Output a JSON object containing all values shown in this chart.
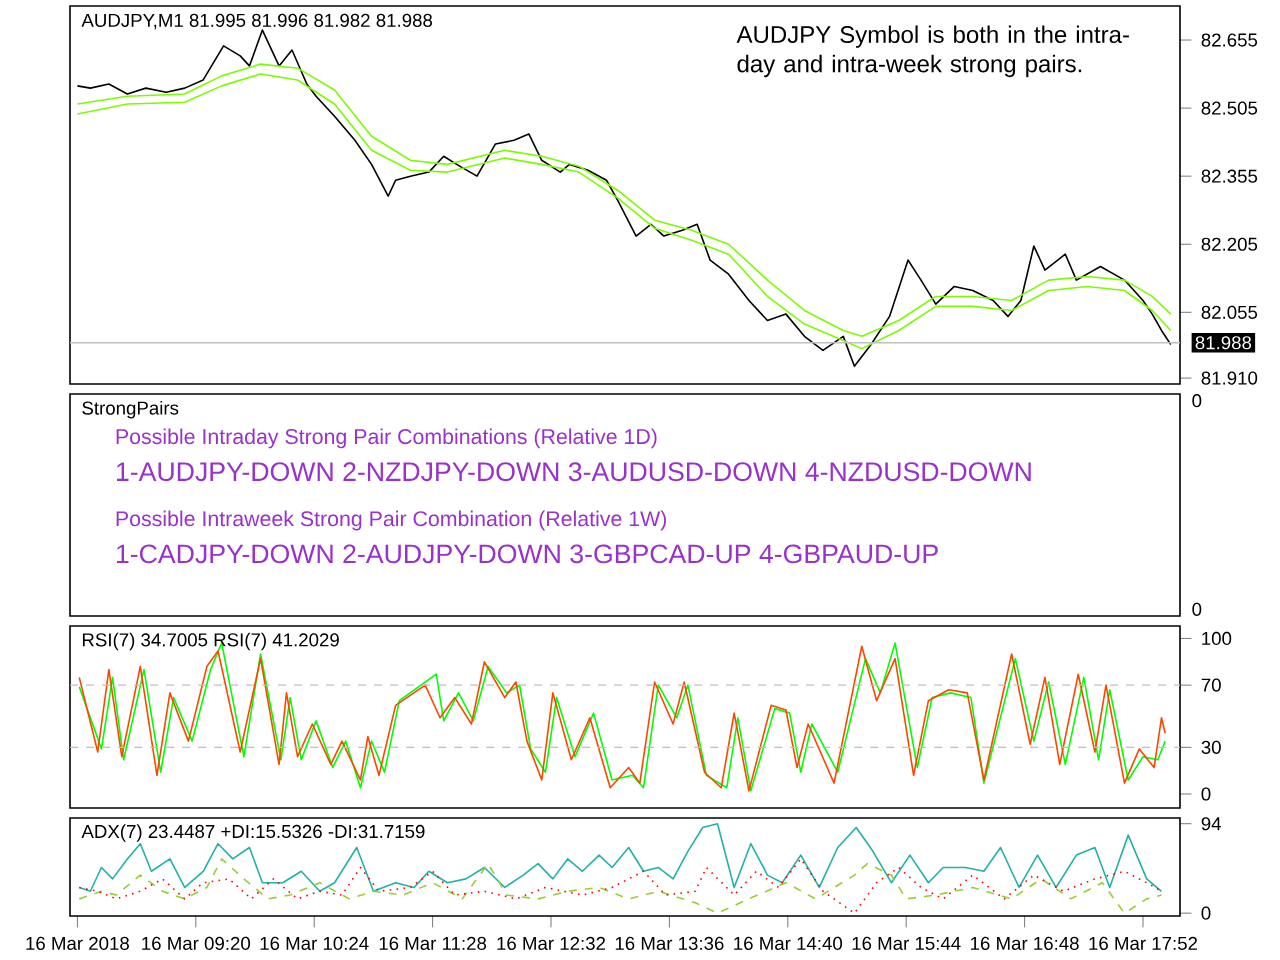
{
  "chart_data": [
    {
      "type": "line",
      "title": "AUDJPY,M1  81.995 81.996 81.982 81.988",
      "annotations": [
        "AUDJPY Symbol is both in the intra-day and intra-week strong pairs."
      ],
      "xlim": [
        "2018-03-16T08:12",
        "2018-03-16T18:12"
      ],
      "ylim": [
        81.897,
        82.73
      ],
      "yticks": [
        82.655,
        82.505,
        82.355,
        82.205,
        82.055,
        {
          "value": 81.91,
          "label": "81.910"
        }
      ],
      "tick_labels": "y",
      "ref_lines": [
        {
          "axis": "y",
          "value": 81.988,
          "label": "81.988",
          "color": "#c0c0c0"
        }
      ],
      "series": [
        {
          "color": "#000000",
          "x": [
            "2018-03-16T08:16",
            "2018-03-16T08:23",
            "2018-03-16T08:33",
            "2018-03-16T08:43",
            "2018-03-16T08:53",
            "2018-03-16T09:04",
            "2018-03-16T09:14",
            "2018-03-16T09:24",
            "2018-03-16T09:35",
            "2018-03-16T09:44",
            "2018-03-16T09:49",
            "2018-03-16T09:56",
            "2018-03-16T10:05",
            "2018-03-16T10:12",
            "2018-03-16T10:20",
            "2018-03-16T10:25",
            "2018-03-16T10:35",
            "2018-03-16T10:46",
            "2018-03-16T10:55",
            "2018-03-16T11:04",
            "2018-03-16T11:08",
            "2018-03-16T11:16",
            "2018-03-16T11:26",
            "2018-03-16T11:34",
            "2018-03-16T11:41",
            "2018-03-16T11:52",
            "2018-03-16T12:02",
            "2018-03-16T12:12",
            "2018-03-16T12:20",
            "2018-03-16T12:27",
            "2018-03-16T12:37",
            "2018-03-16T12:42",
            "2018-03-16T12:52",
            "2018-03-16T13:02",
            "2018-03-16T13:08",
            "2018-03-16T13:18",
            "2018-03-16T13:26",
            "2018-03-16T13:33",
            "2018-03-16T13:43",
            "2018-03-16T13:51",
            "2018-03-16T13:58",
            "2018-03-16T14:08",
            "2018-03-16T14:19",
            "2018-03-16T14:29",
            "2018-03-16T14:39",
            "2018-03-16T14:49",
            "2018-03-16T14:59",
            "2018-03-16T15:10",
            "2018-03-16T15:16",
            "2018-03-16T15:25",
            "2018-03-16T15:35",
            "2018-03-16T15:45",
            "2018-03-16T15:52",
            "2018-03-16T16:00",
            "2018-03-16T16:10",
            "2018-03-16T16:20",
            "2018-03-16T16:31",
            "2018-03-16T16:39",
            "2018-03-16T16:46",
            "2018-03-16T16:53",
            "2018-03-16T16:59",
            "2018-03-16T17:10",
            "2018-03-16T17:16",
            "2018-03-16T17:29",
            "2018-03-16T17:42",
            "2018-03-16T17:52",
            "2018-03-16T17:57",
            "2018-03-16T18:02",
            "2018-03-16T18:07"
          ],
          "values": [
            82.554,
            82.549,
            82.558,
            82.536,
            82.549,
            82.54,
            82.549,
            82.567,
            82.642,
            82.62,
            82.598,
            82.677,
            82.598,
            82.633,
            82.558,
            82.531,
            82.487,
            82.434,
            82.381,
            82.311,
            82.346,
            82.355,
            82.364,
            82.399,
            82.381,
            82.355,
            82.426,
            82.434,
            82.448,
            82.39,
            82.364,
            82.381,
            82.368,
            82.346,
            82.302,
            82.223,
            82.249,
            82.223,
            82.236,
            82.249,
            82.17,
            82.139,
            82.081,
            82.037,
            82.051,
            82.002,
            81.971,
            82.002,
            81.936,
            81.984,
            82.046,
            82.17,
            82.126,
            82.073,
            82.112,
            82.103,
            82.081,
            82.046,
            82.081,
            82.201,
            82.148,
            82.183,
            82.126,
            82.156,
            82.126,
            82.081,
            82.051,
            82.015,
            81.984
          ]
        },
        {
          "color": "#7cfc00",
          "x": [
            "2018-03-16T08:16",
            "2018-03-16T08:43",
            "2018-03-16T09:14",
            "2018-03-16T09:34",
            "2018-03-16T09:55",
            "2018-03-16T10:15",
            "2018-03-16T10:35",
            "2018-03-16T10:55",
            "2018-03-16T11:16",
            "2018-03-16T11:36",
            "2018-03-16T12:07",
            "2018-03-16T12:27",
            "2018-03-16T12:47",
            "2018-03-16T13:08",
            "2018-03-16T13:28",
            "2018-03-16T13:48",
            "2018-03-16T14:08",
            "2018-03-16T14:29",
            "2018-03-16T14:49",
            "2018-03-16T15:10",
            "2018-03-16T15:20",
            "2018-03-16T15:40",
            "2018-03-16T16:00",
            "2018-03-16T16:20",
            "2018-03-16T16:41",
            "2018-03-16T17:01",
            "2018-03-16T17:22",
            "2018-03-16T17:42",
            "2018-03-16T17:57",
            "2018-03-16T18:07"
          ],
          "values": [
            82.514,
            82.531,
            82.536,
            82.576,
            82.602,
            82.593,
            82.545,
            82.443,
            82.39,
            82.381,
            82.412,
            82.399,
            82.377,
            82.324,
            82.258,
            82.236,
            82.205,
            82.126,
            82.059,
            82.015,
            82.002,
            82.037,
            82.09,
            82.09,
            82.081,
            82.126,
            82.134,
            82.126,
            82.09,
            82.051
          ]
        },
        {
          "color": "#7cfc00",
          "x": [
            "2018-03-16T08:16",
            "2018-03-16T08:43",
            "2018-03-16T09:14",
            "2018-03-16T09:34",
            "2018-03-16T09:55",
            "2018-03-16T10:15",
            "2018-03-16T10:35",
            "2018-03-16T10:55",
            "2018-03-16T11:16",
            "2018-03-16T11:36",
            "2018-03-16T12:07",
            "2018-03-16T12:27",
            "2018-03-16T12:47",
            "2018-03-16T13:08",
            "2018-03-16T13:28",
            "2018-03-16T13:48",
            "2018-03-16T14:08",
            "2018-03-16T14:29",
            "2018-03-16T14:49",
            "2018-03-16T15:10",
            "2018-03-16T15:20",
            "2018-03-16T15:40",
            "2018-03-16T16:00",
            "2018-03-16T16:20",
            "2018-03-16T16:41",
            "2018-03-16T17:01",
            "2018-03-16T17:22",
            "2018-03-16T17:42",
            "2018-03-16T17:57",
            "2018-03-16T18:07"
          ],
          "values": [
            82.492,
            82.514,
            82.518,
            82.554,
            82.58,
            82.567,
            82.514,
            82.412,
            82.368,
            82.364,
            82.395,
            82.381,
            82.364,
            82.307,
            82.24,
            82.214,
            82.183,
            82.09,
            82.029,
            81.993,
            81.975,
            82.015,
            82.068,
            82.068,
            82.059,
            82.103,
            82.112,
            82.103,
            82.059,
            82.015
          ]
        }
      ]
    },
    {
      "type": "other",
      "title": "StrongPairs",
      "annotations": [
        "Possible Intraday Strong Pair Combinations (Relative 1D)",
        "1-AUDJPY-DOWN 2-NZDJPY-DOWN 3-AUDUSD-DOWN 4-NZDUSD-DOWN",
        "Possible Intraweek Strong Pair Combination (Relative 1W)",
        "1-CADJPY-DOWN 2-AUDJPY-DOWN 3-GBPCAD-UP 4-GBPAUD-UP",
        "0",
        "0"
      ]
    },
    {
      "type": "line",
      "title": "RSI(7) 34.7005  RSI(7) 41.2029",
      "xlim": [
        "2018-03-16T08:12",
        "2018-03-16T18:12"
      ],
      "ylim": [
        -9,
        108
      ],
      "yticks": [
        100,
        70,
        30,
        0
      ],
      "tick_labels": "y",
      "ref_lines": [
        {
          "axis": "y",
          "value": 70,
          "color": "#c0c0c0",
          "line_style": "dashed"
        },
        {
          "axis": "y",
          "value": 30,
          "color": "#c0c0c0",
          "line_style": "dashed"
        }
      ],
      "series": [
        {
          "color": "#00ff00",
          "x": [
            "2018-03-16T08:17",
            "2018-03-16T08:29",
            "2018-03-16T08:35",
            "2018-03-16T08:41",
            "2018-03-16T08:52",
            "2018-03-16T09:01",
            "2018-03-16T09:08",
            "2018-03-16T09:18",
            "2018-03-16T09:28",
            "2018-03-16T09:34",
            "2018-03-16T09:46",
            "2018-03-16T09:55",
            "2018-03-16T10:06",
            "2018-03-16T10:11",
            "2018-03-16T10:17",
            "2018-03-16T10:25",
            "2018-03-16T10:34",
            "2018-03-16T10:41",
            "2018-03-16T10:49",
            "2018-03-16T10:55",
            "2018-03-16T11:02",
            "2018-03-16T11:10",
            "2018-03-16T11:30",
            "2018-03-16T11:34",
            "2018-03-16T11:42",
            "2018-03-16T11:50",
            "2018-03-16T11:58",
            "2018-03-16T12:08",
            "2018-03-16T12:15",
            "2018-03-16T12:21",
            "2018-03-16T12:29",
            "2018-03-16T12:35",
            "2018-03-16T12:45",
            "2018-03-16T12:55",
            "2018-03-16T13:05",
            "2018-03-16T13:16",
            "2018-03-16T13:22",
            "2018-03-16T13:30",
            "2018-03-16T13:40",
            "2018-03-16T13:46",
            "2018-03-16T13:56",
            "2018-03-16T14:07",
            "2018-03-16T14:13",
            "2018-03-16T14:20",
            "2018-03-16T14:33",
            "2018-03-16T14:41",
            "2018-03-16T14:47",
            "2018-03-16T14:53",
            "2018-03-16T15:07",
            "2018-03-16T15:22",
            "2018-03-16T15:30",
            "2018-03-16T15:38",
            "2018-03-16T15:50",
            "2018-03-16T15:58",
            "2018-03-16T16:08",
            "2018-03-16T16:19",
            "2018-03-16T16:26",
            "2018-03-16T16:43",
            "2018-03-16T16:53",
            "2018-03-16T17:01",
            "2018-03-16T17:10",
            "2018-03-16T17:20",
            "2018-03-16T17:28",
            "2018-03-16T17:34",
            "2018-03-16T17:44",
            "2018-03-16T17:52",
            "2018-03-16T18:00",
            "2018-03-16T18:04"
          ],
          "values": [
            69,
            29,
            75,
            22,
            80,
            14,
            62,
            34,
            80,
            97,
            24,
            90,
            22,
            62,
            22,
            47,
            17,
            34,
            4,
            34,
            14,
            60,
            77,
            47,
            65,
            47,
            82,
            65,
            70,
            29,
            14,
            62,
            24,
            52,
            9,
            12,
            4,
            70,
            49,
            70,
            12,
            4,
            49,
            2,
            55,
            52,
            14,
            45,
            14,
            87,
            65,
            97,
            17,
            62,
            65,
            62,
            7,
            87,
            34,
            72,
            19,
            75,
            22,
            67,
            9,
            24,
            22,
            34
          ]
        },
        {
          "color": "#ff4500",
          "x": [
            "2018-03-16T08:17",
            "2018-03-16T08:27",
            "2018-03-16T08:33",
            "2018-03-16T08:40",
            "2018-03-16T08:50",
            "2018-03-16T08:59",
            "2018-03-16T09:06",
            "2018-03-16T09:16",
            "2018-03-16T09:26",
            "2018-03-16T09:32",
            "2018-03-16T09:44",
            "2018-03-16T09:55",
            "2018-03-16T10:05",
            "2018-03-16T10:09",
            "2018-03-16T10:15",
            "2018-03-16T10:23",
            "2018-03-16T10:33",
            "2018-03-16T10:39",
            "2018-03-16T10:49",
            "2018-03-16T10:53",
            "2018-03-16T10:59",
            "2018-03-16T11:08",
            "2018-03-16T11:24",
            "2018-03-16T11:32",
            "2018-03-16T11:40",
            "2018-03-16T11:49",
            "2018-03-16T11:56",
            "2018-03-16T12:07",
            "2018-03-16T12:13",
            "2018-03-16T12:19",
            "2018-03-16T12:27",
            "2018-03-16T12:33",
            "2018-03-16T12:43",
            "2018-03-16T12:53",
            "2018-03-16T13:04",
            "2018-03-16T13:14",
            "2018-03-16T13:20",
            "2018-03-16T13:28",
            "2018-03-16T13:38",
            "2018-03-16T13:44",
            "2018-03-16T13:55",
            "2018-03-16T14:04",
            "2018-03-16T14:11",
            "2018-03-16T14:19",
            "2018-03-16T14:31",
            "2018-03-16T14:39",
            "2018-03-16T14:45",
            "2018-03-16T14:51",
            "2018-03-16T15:05",
            "2018-03-16T15:20",
            "2018-03-16T15:28",
            "2018-03-16T15:38",
            "2018-03-16T15:48",
            "2018-03-16T15:56",
            "2018-03-16T16:07",
            "2018-03-16T16:17",
            "2018-03-16T16:26",
            "2018-03-16T16:41",
            "2018-03-16T16:51",
            "2018-03-16T16:59",
            "2018-03-16T17:07",
            "2018-03-16T17:17",
            "2018-03-16T17:26",
            "2018-03-16T17:32",
            "2018-03-16T17:42",
            "2018-03-16T17:50",
            "2018-03-16T17:58",
            "2018-03-16T18:02",
            "2018-03-16T18:04"
          ],
          "values": [
            75,
            27,
            80,
            24,
            82,
            12,
            65,
            34,
            82,
            92,
            27,
            87,
            19,
            65,
            24,
            45,
            19,
            34,
            9,
            37,
            12,
            57,
            70,
            49,
            62,
            45,
            85,
            62,
            72,
            34,
            9,
            65,
            22,
            49,
            4,
            17,
            7,
            72,
            45,
            72,
            14,
            4,
            52,
            2,
            57,
            54,
            17,
            45,
            7,
            95,
            60,
            87,
            12,
            60,
            67,
            65,
            9,
            90,
            32,
            75,
            19,
            77,
            27,
            70,
            7,
            29,
            17,
            49,
            39
          ]
        }
      ]
    },
    {
      "type": "line",
      "title": "ADX(7) 23.4487 +DI:15.5326 -DI:31.7159",
      "xlim": [
        "2018-03-16T08:12",
        "2018-03-16T18:12"
      ],
      "ylim": [
        -3,
        100
      ],
      "yticks": [
        94,
        0
      ],
      "xticks": [
        {
          "value": "2018-03-16T08:16",
          "label": "16 Mar 2018"
        },
        {
          "value": "2018-03-16T09:20",
          "label": "16 Mar 09:20"
        },
        {
          "value": "2018-03-16T10:24",
          "label": "16 Mar 10:24"
        },
        {
          "value": "2018-03-16T11:28",
          "label": "16 Mar 11:28"
        },
        {
          "value": "2018-03-16T12:32",
          "label": "16 Mar 12:32"
        },
        {
          "value": "2018-03-16T13:36",
          "label": "16 Mar 13:36"
        },
        {
          "value": "2018-03-16T14:40",
          "label": "16 Mar 14:40"
        },
        {
          "value": "2018-03-16T15:44",
          "label": "16 Mar 15:44"
        },
        {
          "value": "2018-03-16T16:48",
          "label": "16 Mar 16:48"
        },
        {
          "value": "2018-03-16T17:52",
          "label": "16 Mar 17:52"
        }
      ],
      "series": [
        {
          "color": "#20b2aa",
          "line_style": "solid",
          "x": [
            "2018-03-16T08:17",
            "2018-03-16T08:23",
            "2018-03-16T08:29",
            "2018-03-16T08:35",
            "2018-03-16T08:43",
            "2018-03-16T08:50",
            "2018-03-16T08:56",
            "2018-03-16T09:06",
            "2018-03-16T09:14",
            "2018-03-16T09:24",
            "2018-03-16T09:32",
            "2018-03-16T09:40",
            "2018-03-16T09:49",
            "2018-03-16T09:56",
            "2018-03-16T10:07",
            "2018-03-16T10:17",
            "2018-03-16T10:27",
            "2018-03-16T10:35",
            "2018-03-16T10:47",
            "2018-03-16T10:56",
            "2018-03-16T11:08",
            "2018-03-16T11:18",
            "2018-03-16T11:26",
            "2018-03-16T11:36",
            "2018-03-16T11:46",
            "2018-03-16T11:56",
            "2018-03-16T12:07",
            "2018-03-16T12:17",
            "2018-03-16T12:25",
            "2018-03-16T12:33",
            "2018-03-16T12:41",
            "2018-03-16T12:49",
            "2018-03-16T12:58",
            "2018-03-16T13:05",
            "2018-03-16T13:14",
            "2018-03-16T13:22",
            "2018-03-16T13:30",
            "2018-03-16T13:38",
            "2018-03-16T13:46",
            "2018-03-16T13:54",
            "2018-03-16T14:02",
            "2018-03-16T14:11",
            "2018-03-16T14:20",
            "2018-03-16T14:29",
            "2018-03-16T14:37",
            "2018-03-16T14:47",
            "2018-03-16T14:57",
            "2018-03-16T15:07",
            "2018-03-16T15:17",
            "2018-03-16T15:26",
            "2018-03-16T15:36",
            "2018-03-16T15:46",
            "2018-03-16T15:56",
            "2018-03-16T16:04",
            "2018-03-16T16:16",
            "2018-03-16T16:26",
            "2018-03-16T16:35",
            "2018-03-16T16:45",
            "2018-03-16T16:55",
            "2018-03-16T17:05",
            "2018-03-16T17:16",
            "2018-03-16T17:26",
            "2018-03-16T17:34",
            "2018-03-16T17:44",
            "2018-03-16T17:54",
            "2018-03-16T18:02"
          ],
          "values": [
            27,
            23,
            48,
            36,
            57,
            73,
            44,
            57,
            27,
            44,
            73,
            57,
            69,
            32,
            32,
            44,
            23,
            32,
            69,
            23,
            32,
            27,
            44,
            32,
            36,
            48,
            27,
            40,
            52,
            36,
            57,
            44,
            61,
            48,
            69,
            44,
            48,
            36,
            65,
            90,
            94,
            27,
            73,
            40,
            32,
            61,
            27,
            69,
            90,
            65,
            32,
            61,
            32,
            48,
            48,
            44,
            69,
            27,
            61,
            27,
            61,
            69,
            27,
            82,
            36,
            23
          ]
        },
        {
          "color": "#9acd32",
          "line_style": "dashed",
          "x": [
            "2018-03-16T08:17",
            "2018-03-16T08:29",
            "2018-03-16T08:37",
            "2018-03-16T08:50",
            "2018-03-16T09:02",
            "2018-03-16T09:14",
            "2018-03-16T09:26",
            "2018-03-16T09:34",
            "2018-03-16T09:46",
            "2018-03-16T09:59",
            "2018-03-16T10:11",
            "2018-03-16T10:27",
            "2018-03-16T10:43",
            "2018-03-16T10:56",
            "2018-03-16T11:12",
            "2018-03-16T11:28",
            "2018-03-16T11:44",
            "2018-03-16T11:58",
            "2018-03-16T12:08",
            "2018-03-16T12:25",
            "2018-03-16T12:41",
            "2018-03-16T12:58",
            "2018-03-16T13:14",
            "2018-03-16T13:30",
            "2018-03-16T13:50",
            "2018-03-16T14:02",
            "2018-03-16T14:19",
            "2018-03-16T14:39",
            "2018-03-16T14:55",
            "2018-03-16T15:16",
            "2018-03-16T15:23",
            "2018-03-16T15:36",
            "2018-03-16T15:44",
            "2018-03-16T16:00",
            "2018-03-16T16:20",
            "2018-03-16T16:41",
            "2018-03-16T16:57",
            "2018-03-16T17:13",
            "2018-03-16T17:30",
            "2018-03-16T17:42",
            "2018-03-16T17:54",
            "2018-03-16T18:02"
          ],
          "values": [
            15,
            23,
            19,
            40,
            23,
            15,
            27,
            57,
            36,
            15,
            19,
            32,
            15,
            23,
            19,
            32,
            15,
            52,
            19,
            15,
            23,
            27,
            15,
            23,
            11,
            0,
            15,
            32,
            15,
            40,
            52,
            40,
            15,
            19,
            27,
            15,
            36,
            15,
            32,
            0,
            15,
            19
          ]
        },
        {
          "color": "#ff0000",
          "line_style": "dotted",
          "x": [
            "2018-03-16T08:17",
            "2018-03-16T08:27",
            "2018-03-16T08:37",
            "2018-03-16T08:50",
            "2018-03-16T09:02",
            "2018-03-16T09:14",
            "2018-03-16T09:24",
            "2018-03-16T09:38",
            "2018-03-16T09:50",
            "2018-03-16T10:02",
            "2018-03-16T10:15",
            "2018-03-16T10:27",
            "2018-03-16T10:39",
            "2018-03-16T10:49",
            "2018-03-16T10:59",
            "2018-03-16T11:16",
            "2018-03-16T11:28",
            "2018-03-16T11:40",
            "2018-03-16T11:56",
            "2018-03-16T12:13",
            "2018-03-16T12:29",
            "2018-03-16T12:49",
            "2018-03-16T13:05",
            "2018-03-16T13:22",
            "2018-03-16T13:34",
            "2018-03-16T13:50",
            "2018-03-16T13:56",
            "2018-03-16T14:11",
            "2018-03-16T14:23",
            "2018-03-16T14:35",
            "2018-03-16T14:47",
            "2018-03-16T14:59",
            "2018-03-16T15:16",
            "2018-03-16T15:28",
            "2018-03-16T15:40",
            "2018-03-16T15:52",
            "2018-03-16T16:04",
            "2018-03-16T16:20",
            "2018-03-16T16:37",
            "2018-03-16T16:53",
            "2018-03-16T17:09",
            "2018-03-16T17:26",
            "2018-03-16T17:42",
            "2018-03-16T17:54",
            "2018-03-16T18:02"
          ],
          "values": [
            27,
            23,
            15,
            23,
            36,
            15,
            32,
            36,
            15,
            36,
            15,
            23,
            19,
            48,
            23,
            27,
            44,
            19,
            23,
            15,
            27,
            19,
            27,
            44,
            19,
            23,
            48,
            19,
            44,
            27,
            57,
            23,
            0,
            32,
            48,
            27,
            15,
            40,
            15,
            40,
            23,
            36,
            44,
            32,
            23
          ]
        }
      ]
    }
  ]
}
